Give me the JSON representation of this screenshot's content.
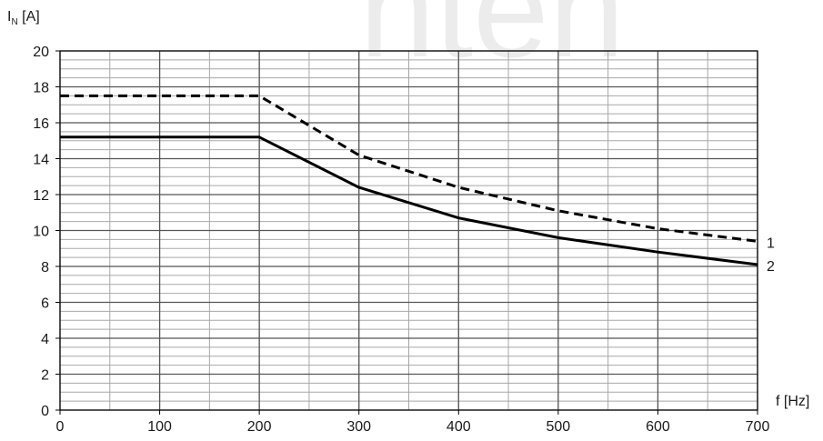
{
  "watermark": "nten",
  "chart_data": {
    "type": "line",
    "xlabel": "f [Hz]",
    "ylabel_main": "I",
    "ylabel_sub": "N",
    "ylabel_unit": " [A]",
    "xlim": [
      0,
      700
    ],
    "ylim": [
      0,
      20
    ],
    "x_ticks": [
      0,
      100,
      200,
      300,
      400,
      500,
      600,
      700
    ],
    "y_ticks": [
      0,
      2,
      4,
      6,
      8,
      10,
      12,
      14,
      16,
      18,
      20
    ],
    "x_minor_step": 50,
    "y_minor_step": 0.5,
    "grid": true,
    "series": [
      {
        "name": "1",
        "style": "dashed",
        "x": [
          0,
          200,
          300,
          400,
          500,
          600,
          700
        ],
        "y": [
          17.5,
          17.5,
          14.2,
          12.4,
          11.1,
          10.1,
          9.4
        ]
      },
      {
        "name": "2",
        "style": "solid",
        "x": [
          0,
          200,
          300,
          400,
          500,
          600,
          700
        ],
        "y": [
          15.2,
          15.2,
          12.4,
          10.7,
          9.6,
          8.8,
          8.1
        ]
      }
    ]
  }
}
